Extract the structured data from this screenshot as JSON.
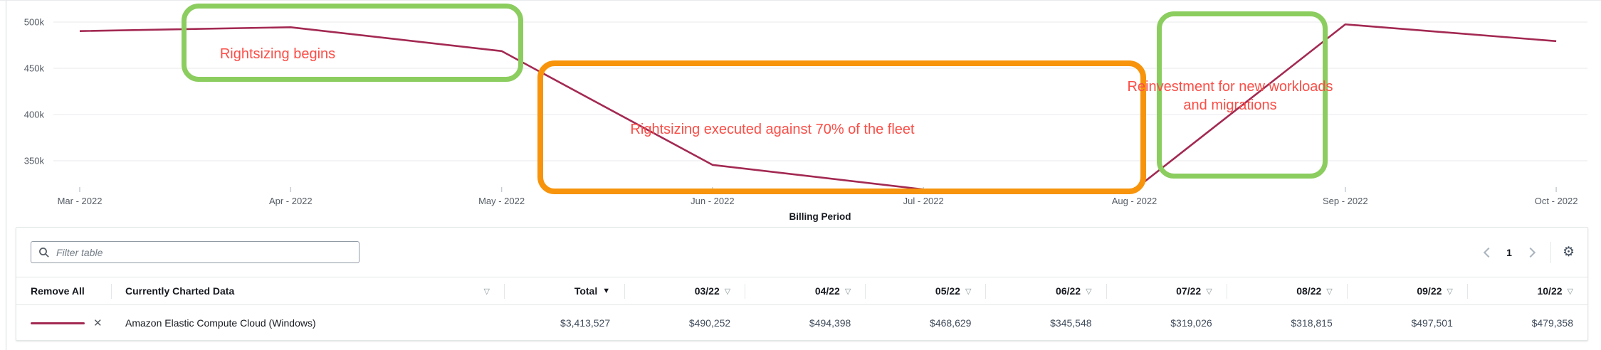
{
  "chart_data": {
    "type": "line",
    "title": "",
    "xlabel": "Billing Period",
    "ylabel": "",
    "x": [
      "Mar - 2022",
      "Apr - 2022",
      "May - 2022",
      "Jun - 2022",
      "Jul - 2022",
      "Aug - 2022",
      "Sep - 2022",
      "Oct - 2022"
    ],
    "series": [
      {
        "name": "Amazon Elastic Compute Cloud (Windows)",
        "values": [
          490252,
          494398,
          468629,
          345548,
          319026,
          318815,
          497501,
          479358
        ],
        "color": "#a32952"
      }
    ],
    "y_tick_labels": [
      "500k",
      "450k",
      "400k",
      "350k"
    ],
    "y_tick_values": [
      500000,
      450000,
      400000,
      350000
    ],
    "ylim": [
      310000,
      510000
    ],
    "grid": true,
    "legend": "none",
    "annotations": [
      {
        "text": "Rightsizing begins",
        "box_color": "#8ccd5f",
        "text_color": "#fb4e47"
      },
      {
        "text": "Rightsizing executed against 70% of the fleet",
        "box_color": "#f7940b",
        "text_color": "#fb4e47"
      },
      {
        "text": "Reinvestment for new workloads and migrations",
        "box_color": "#8ccd5f",
        "text_color": "#fb4e47"
      }
    ]
  },
  "table": {
    "filter_placeholder": "Filter table",
    "pagination": {
      "current_page": "1"
    },
    "icons": {
      "sort_outline": "▽",
      "sort_filled": "▼",
      "close": "✕",
      "settings": "⚙"
    },
    "columns": [
      "Remove All",
      "Currently Charted Data",
      "Total",
      "03/22",
      "04/22",
      "05/22",
      "06/22",
      "07/22",
      "08/22",
      "09/22",
      "10/22"
    ],
    "rows": [
      {
        "name": "Amazon Elastic Compute Cloud (Windows)",
        "swatch_color": "#a32952",
        "total": "$3,413,527",
        "values": [
          "$490,252",
          "$494,398",
          "$468,629",
          "$345,548",
          "$319,026",
          "$318,815",
          "$497,501",
          "$479,358"
        ]
      }
    ]
  }
}
